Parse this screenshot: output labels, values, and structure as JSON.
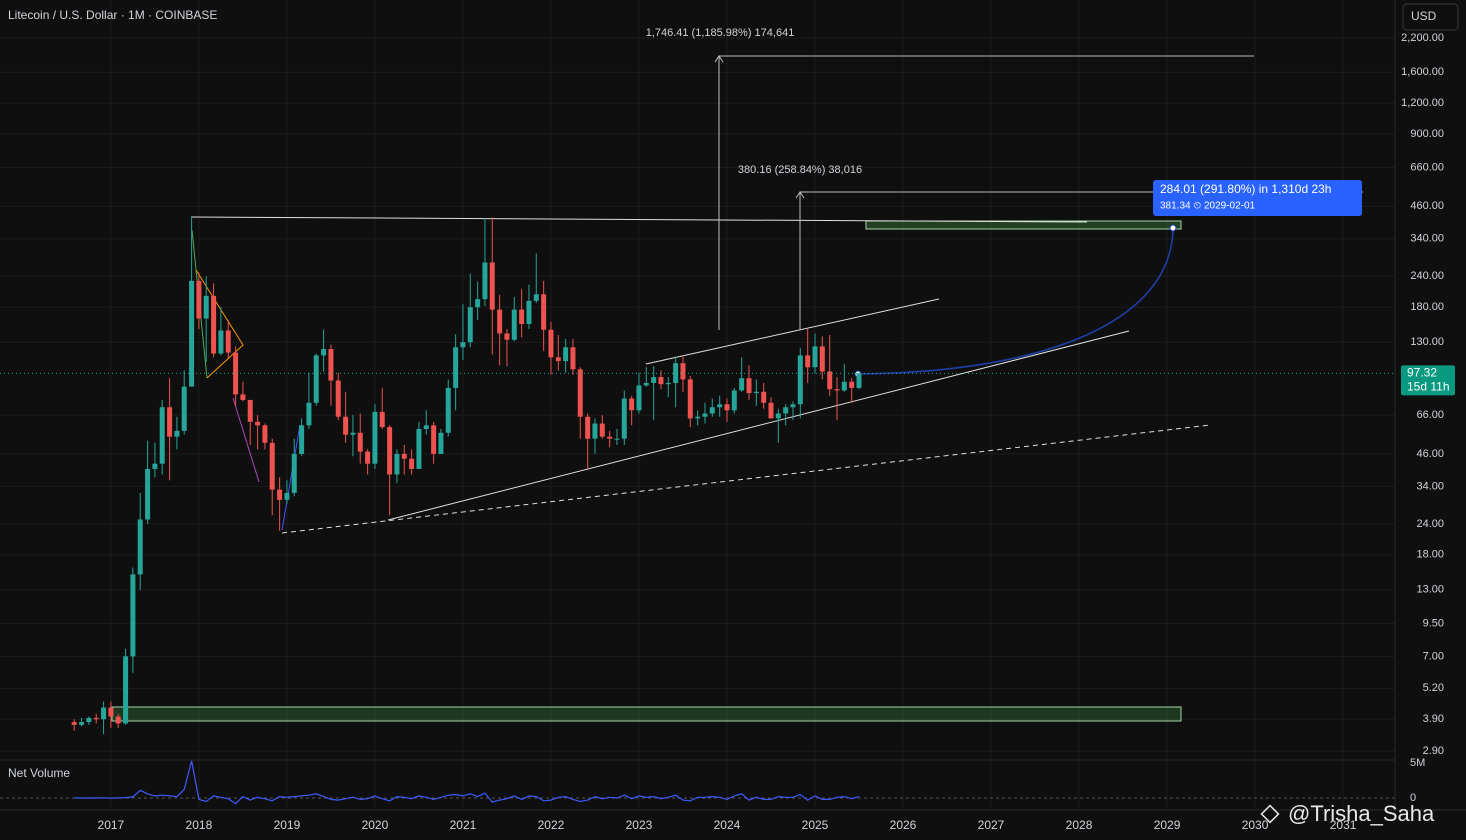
{
  "chart_data": [
    {
      "type": "candlestick",
      "title": "Litecoin / U.S. Dollar · 1M · COINBASE",
      "currency": "USD",
      "countdown": "15d 11h",
      "annotations": [
        "1,746.41 (1,185.98%) 174,641",
        "380.16 (258.84%) 38,016",
        "284.01 (291.80%) in 1,310d 23h",
        "381.34 ⏲ 2029-02-01"
      ],
      "watermark": "@Trisha_Saha",
      "log_scale": true,
      "grid": true,
      "up_color": "#26a69a",
      "down_color": "#ef5350",
      "xlim": [
        2015.74,
        2031.59
      ],
      "xticks": [
        2017,
        2018,
        2019,
        2020,
        2021,
        2022,
        2023,
        2024,
        2025,
        2026,
        2027,
        2028,
        2029,
        2030,
        2031
      ],
      "ylim": [
        2.67,
        3134
      ],
      "yticks": [
        {
          "value": 2200,
          "label": "2,200.00"
        },
        {
          "value": 1600,
          "label": "1,600.00"
        },
        {
          "value": 1200,
          "label": "1,200.00"
        },
        {
          "value": 900,
          "label": "900.00"
        },
        {
          "value": 660,
          "label": "660.00"
        },
        {
          "value": 460,
          "label": "460.00"
        },
        {
          "value": 340,
          "label": "340.00"
        },
        {
          "value": 240,
          "label": "240.00"
        },
        {
          "value": 180,
          "label": "180.00"
        },
        {
          "value": 130,
          "label": "130.00"
        },
        {
          "value": 66,
          "label": "66.00"
        },
        {
          "value": 46,
          "label": "46.00"
        },
        {
          "value": 34,
          "label": "34.00"
        },
        {
          "value": 24,
          "label": "24.00"
        },
        {
          "value": 18,
          "label": "18.00"
        },
        {
          "value": 13,
          "label": "13.00"
        },
        {
          "value": 9.5,
          "label": "9.50"
        },
        {
          "value": 7,
          "label": "7.00"
        },
        {
          "value": 5.2,
          "label": "5.20"
        },
        {
          "value": 3.9,
          "label": "3.90"
        },
        {
          "value": 2.9,
          "label": "2.90"
        }
      ],
      "x": [
        2016.583,
        2016.667,
        2016.75,
        2016.833,
        2016.917,
        2017,
        2017.083,
        2017.167,
        2017.25,
        2017.333,
        2017.417,
        2017.5,
        2017.583,
        2017.667,
        2017.75,
        2017.833,
        2017.917,
        2018,
        2018.083,
        2018.167,
        2018.25,
        2018.333,
        2018.417,
        2018.5,
        2018.583,
        2018.667,
        2018.75,
        2018.833,
        2018.917,
        2019,
        2019.083,
        2019.167,
        2019.25,
        2019.333,
        2019.417,
        2019.5,
        2019.583,
        2019.667,
        2019.75,
        2019.833,
        2019.917,
        2020,
        2020.083,
        2020.167,
        2020.25,
        2020.333,
        2020.417,
        2020.5,
        2020.583,
        2020.667,
        2020.75,
        2020.833,
        2020.917,
        2021,
        2021.083,
        2021.167,
        2021.25,
        2021.333,
        2021.417,
        2021.5,
        2021.583,
        2021.667,
        2021.75,
        2021.833,
        2021.917,
        2022,
        2022.083,
        2022.167,
        2022.25,
        2022.333,
        2022.417,
        2022.5,
        2022.583,
        2022.667,
        2022.75,
        2022.833,
        2022.917,
        2023,
        2023.083,
        2023.167,
        2023.25,
        2023.333,
        2023.417,
        2023.5,
        2023.583,
        2023.667,
        2023.75,
        2023.833,
        2023.917,
        2024,
        2024.083,
        2024.167,
        2024.25,
        2024.333,
        2024.417,
        2024.5,
        2024.583,
        2024.667,
        2024.75,
        2024.833,
        2024.917,
        2025,
        2025.083,
        2025.167,
        2025.25,
        2025.333,
        2025.417,
        2025.5
      ],
      "open": [
        3.8,
        3.7,
        3.8,
        3.95,
        3.9,
        4.35,
        4.0,
        3.75,
        7.0,
        15,
        25,
        40,
        42,
        71,
        54,
        57,
        86,
        230,
        162,
        200,
        117,
        145,
        118,
        80,
        76,
        62,
        60,
        51,
        33,
        30,
        32,
        46,
        60,
        74,
        115,
        122,
        91,
        65,
        55,
        56,
        47,
        42,
        68,
        59,
        38,
        46,
        44,
        40,
        58,
        60,
        46,
        56,
        85,
        124,
        130,
        180,
        194,
        273,
        176,
        141,
        133,
        176,
        154,
        191,
        203,
        146,
        113,
        109,
        124,
        101,
        65,
        53,
        61,
        54,
        53,
        53,
        77,
        69,
        87,
        89,
        94,
        88,
        89,
        107,
        92,
        64,
        65,
        67,
        71,
        73,
        69,
        83,
        93,
        81,
        82,
        74,
        64,
        67,
        71,
        73,
        115,
        103,
        125,
        99,
        84,
        83,
        90,
        85
      ],
      "high": [
        3.9,
        3.95,
        4.0,
        4.1,
        4.6,
        4.6,
        4.1,
        7.5,
        16,
        32,
        52,
        51,
        76,
        93,
        65,
        100,
        420,
        248,
        240,
        225,
        180,
        160,
        125,
        90,
        76,
        66,
        61,
        53,
        37,
        36,
        53,
        64,
        98,
        117,
        146,
        127,
        98,
        82,
        66,
        67,
        48,
        73,
        85,
        60,
        48,
        50,
        48,
        62,
        69,
        62,
        58,
        92,
        140,
        185,
        246,
        228,
        412,
        415,
        202,
        147,
        198,
        213,
        222,
        297,
        230,
        157,
        139,
        134,
        134,
        103,
        67,
        64,
        66,
        57,
        58,
        83,
        79,
        98,
        103,
        104,
        100,
        94,
        114,
        115,
        95,
        69,
        74,
        77,
        79,
        77,
        85,
        113,
        105,
        92,
        89,
        78,
        70,
        73,
        75,
        123,
        147,
        141,
        137,
        139,
        94,
        106,
        93,
        98
      ],
      "low": [
        3.5,
        3.65,
        3.7,
        3.75,
        3.4,
        3.6,
        3.6,
        3.7,
        6.0,
        13,
        24,
        37,
        38,
        36,
        48,
        55,
        86,
        147,
        108,
        113,
        115,
        112,
        72,
        75,
        50,
        48,
        48,
        26,
        22.5,
        29,
        31,
        45,
        58,
        72,
        99,
        72,
        63,
        51,
        45,
        42,
        38,
        40,
        58,
        26,
        35,
        38,
        38,
        40,
        55,
        42,
        46,
        54,
        69,
        110,
        124,
        160,
        182,
        116,
        105,
        104,
        131,
        136,
        147,
        187,
        120,
        96,
        100,
        98,
        96,
        53,
        40,
        46,
        53,
        49,
        50,
        50,
        60,
        67,
        86,
        63,
        84,
        78,
        71,
        82,
        59,
        60,
        61,
        65,
        65,
        62,
        67,
        82,
        76,
        72,
        70,
        64,
        51,
        60,
        63,
        64,
        89,
        97,
        92,
        79,
        63,
        82,
        74,
        84
      ],
      "close": [
        3.7,
        3.8,
        3.95,
        3.9,
        4.35,
        4.0,
        3.75,
        7.0,
        15,
        25,
        40,
        42,
        71,
        54,
        57,
        86,
        230,
        162,
        200,
        117,
        145,
        118,
        80,
        76,
        62,
        60,
        51,
        33,
        30,
        32,
        46,
        60,
        74,
        115,
        122,
        91,
        65,
        55,
        56,
        47,
        42,
        68,
        59,
        38,
        46,
        44,
        40,
        58,
        60,
        46,
        56,
        85,
        124,
        130,
        180,
        194,
        273,
        176,
        141,
        133,
        176,
        154,
        191,
        203,
        146,
        113,
        109,
        124,
        101,
        65,
        53,
        61,
        54,
        53,
        53,
        77,
        69,
        87,
        89,
        94,
        88,
        89,
        107,
        92,
        64,
        65,
        67,
        71,
        73,
        69,
        83,
        93,
        81,
        82,
        74,
        64,
        67,
        71,
        73,
        115,
        103,
        125,
        99,
        84,
        83,
        90,
        85,
        97.32
      ]
    },
    {
      "type": "line",
      "title": "Net Volume",
      "color": "#3d5afe",
      "xlim": [
        2015.74,
        2031.59
      ],
      "ylim": [
        -1430000,
        5140000
      ],
      "yticks": [
        {
          "value": 5000000,
          "label": "5M"
        },
        0
      ],
      "x": [
        2016.583,
        2016.667,
        2016.75,
        2016.833,
        2016.917,
        2017,
        2017.083,
        2017.167,
        2017.25,
        2017.333,
        2017.417,
        2017.5,
        2017.583,
        2017.667,
        2017.75,
        2017.833,
        2017.917,
        2018,
        2018.083,
        2018.167,
        2018.25,
        2018.333,
        2018.417,
        2018.5,
        2018.583,
        2018.667,
        2018.75,
        2018.833,
        2018.917,
        2019,
        2019.083,
        2019.167,
        2019.25,
        2019.333,
        2019.417,
        2019.5,
        2019.583,
        2019.667,
        2019.75,
        2019.833,
        2019.917,
        2020,
        2020.083,
        2020.167,
        2020.25,
        2020.333,
        2020.417,
        2020.5,
        2020.583,
        2020.667,
        2020.75,
        2020.833,
        2020.917,
        2021,
        2021.083,
        2021.167,
        2021.25,
        2021.333,
        2021.417,
        2021.5,
        2021.583,
        2021.667,
        2021.75,
        2021.833,
        2021.917,
        2022,
        2022.083,
        2022.167,
        2022.25,
        2022.333,
        2022.417,
        2022.5,
        2022.583,
        2022.667,
        2022.75,
        2022.833,
        2022.917,
        2023,
        2023.083,
        2023.167,
        2023.25,
        2023.333,
        2023.417,
        2023.5,
        2023.583,
        2023.667,
        2023.75,
        2023.833,
        2023.917,
        2024,
        2024.083,
        2024.167,
        2024.25,
        2024.333,
        2024.417,
        2024.5,
        2024.583,
        2024.667,
        2024.75,
        2024.833,
        2024.917,
        2025,
        2025.083,
        2025.167,
        2025.25,
        2025.333,
        2025.417,
        2025.5
      ],
      "values": [
        20000,
        -15000,
        10000,
        5000,
        30000,
        -20000,
        10000,
        60000,
        150000,
        1100000,
        600000,
        300000,
        400000,
        300000,
        200000,
        1200000,
        5300000,
        -200000,
        -500000,
        300000,
        100000,
        -100000,
        -800000,
        200000,
        -300000,
        100000,
        -100000,
        -400000,
        200000,
        100000,
        200000,
        300000,
        400000,
        600000,
        200000,
        -200000,
        -300000,
        -100000,
        100000,
        -200000,
        -100000,
        300000,
        -100000,
        -400000,
        200000,
        100000,
        -100000,
        300000,
        100000,
        -200000,
        100000,
        400000,
        500000,
        300000,
        600000,
        200000,
        700000,
        -600000,
        -300000,
        -100000,
        300000,
        -200000,
        300000,
        200000,
        -400000,
        -300000,
        100000,
        200000,
        -200000,
        -500000,
        -300000,
        200000,
        -100000,
        100000,
        0,
        400000,
        -100000,
        300000,
        100000,
        200000,
        -100000,
        100000,
        400000,
        -300000,
        -400000,
        100000,
        100000,
        200000,
        100000,
        -200000,
        300000,
        600000,
        -300000,
        100000,
        -200000,
        -200000,
        200000,
        100000,
        100000,
        500000,
        -300000,
        300000,
        -200000,
        -200000,
        100000,
        200000,
        -100000,
        200000
      ]
    }
  ]
}
